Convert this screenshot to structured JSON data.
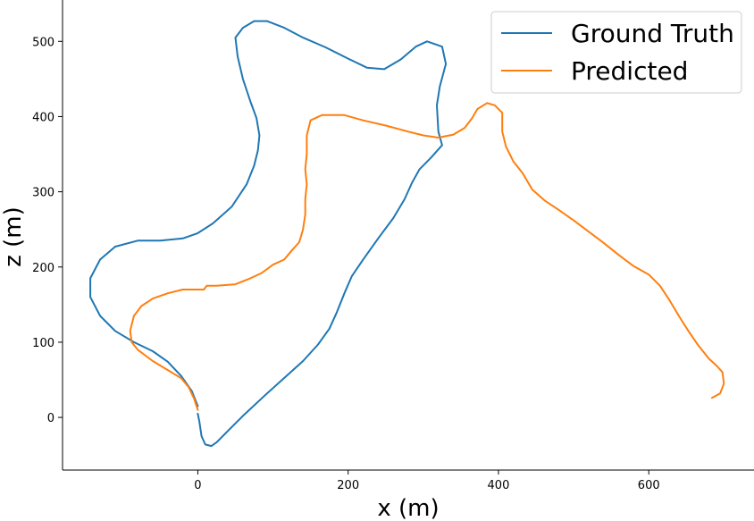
{
  "chart_data": {
    "type": "line",
    "title": "",
    "xlabel": "x (m)",
    "ylabel": "z (m)",
    "xlim": [
      -180,
      740
    ],
    "ylim": [
      -70,
      555
    ],
    "xticks": [
      0,
      200,
      400,
      600
    ],
    "yticks": [
      0,
      100,
      200,
      300,
      400,
      500
    ],
    "grid": false,
    "legend_position": "top-right",
    "series": [
      {
        "name": "Ground Truth",
        "color": "#1f77b4",
        "points": [
          [
            0,
            5
          ],
          [
            2,
            -5
          ],
          [
            5,
            -25
          ],
          [
            10,
            -36
          ],
          [
            18,
            -38
          ],
          [
            25,
            -33
          ],
          [
            40,
            -18
          ],
          [
            60,
            2
          ],
          [
            90,
            30
          ],
          [
            120,
            57
          ],
          [
            140,
            75
          ],
          [
            160,
            97
          ],
          [
            175,
            118
          ],
          [
            185,
            140
          ],
          [
            195,
            165
          ],
          [
            205,
            188
          ],
          [
            220,
            210
          ],
          [
            240,
            238
          ],
          [
            260,
            265
          ],
          [
            275,
            290
          ],
          [
            285,
            312
          ],
          [
            295,
            330
          ],
          [
            310,
            345
          ],
          [
            325,
            362
          ],
          [
            320,
            380
          ],
          [
            318,
            415
          ],
          [
            322,
            440
          ],
          [
            330,
            470
          ],
          [
            325,
            493
          ],
          [
            305,
            500
          ],
          [
            290,
            493
          ],
          [
            270,
            476
          ],
          [
            248,
            463
          ],
          [
            225,
            465
          ],
          [
            200,
            477
          ],
          [
            170,
            492
          ],
          [
            140,
            505
          ],
          [
            115,
            518
          ],
          [
            92,
            527
          ],
          [
            75,
            527
          ],
          [
            60,
            518
          ],
          [
            50,
            505
          ],
          [
            53,
            480
          ],
          [
            60,
            450
          ],
          [
            70,
            420
          ],
          [
            78,
            398
          ],
          [
            82,
            375
          ],
          [
            80,
            355
          ],
          [
            75,
            335
          ],
          [
            65,
            310
          ],
          [
            45,
            280
          ],
          [
            20,
            258
          ],
          [
            0,
            245
          ],
          [
            -20,
            238
          ],
          [
            -50,
            235
          ],
          [
            -80,
            235
          ],
          [
            -110,
            227
          ],
          [
            -130,
            210
          ],
          [
            -143,
            185
          ],
          [
            -143,
            160
          ],
          [
            -130,
            135
          ],
          [
            -110,
            115
          ],
          [
            -85,
            100
          ],
          [
            -60,
            88
          ],
          [
            -40,
            74
          ],
          [
            -22,
            55
          ],
          [
            -8,
            35
          ],
          [
            0,
            15
          ]
        ]
      },
      {
        "name": "Predicted",
        "color": "#ff7f0e",
        "points": [
          [
            0,
            10
          ],
          [
            -5,
            25
          ],
          [
            -12,
            40
          ],
          [
            -22,
            52
          ],
          [
            -40,
            63
          ],
          [
            -60,
            75
          ],
          [
            -80,
            90
          ],
          [
            -88,
            100
          ],
          [
            -90,
            115
          ],
          [
            -85,
            135
          ],
          [
            -75,
            148
          ],
          [
            -60,
            158
          ],
          [
            -40,
            165
          ],
          [
            -20,
            170
          ],
          [
            8,
            170
          ],
          [
            12,
            175
          ],
          [
            25,
            175
          ],
          [
            50,
            177
          ],
          [
            70,
            185
          ],
          [
            85,
            192
          ],
          [
            100,
            203
          ],
          [
            115,
            210
          ],
          [
            125,
            222
          ],
          [
            135,
            233
          ],
          [
            140,
            250
          ],
          [
            143,
            270
          ],
          [
            143,
            290
          ],
          [
            145,
            310
          ],
          [
            143,
            330
          ],
          [
            145,
            350
          ],
          [
            145,
            375
          ],
          [
            150,
            395
          ],
          [
            165,
            402
          ],
          [
            195,
            402
          ],
          [
            220,
            395
          ],
          [
            250,
            388
          ],
          [
            280,
            380
          ],
          [
            300,
            375
          ],
          [
            320,
            372
          ],
          [
            340,
            376
          ],
          [
            355,
            385
          ],
          [
            365,
            398
          ],
          [
            372,
            410
          ],
          [
            385,
            418
          ],
          [
            395,
            415
          ],
          [
            405,
            405
          ],
          [
            405,
            380
          ],
          [
            410,
            360
          ],
          [
            420,
            340
          ],
          [
            432,
            325
          ],
          [
            445,
            303
          ],
          [
            462,
            288
          ],
          [
            480,
            276
          ],
          [
            500,
            262
          ],
          [
            520,
            247
          ],
          [
            540,
            232
          ],
          [
            560,
            216
          ],
          [
            580,
            201
          ],
          [
            600,
            190
          ],
          [
            615,
            175
          ],
          [
            628,
            155
          ],
          [
            640,
            135
          ],
          [
            652,
            116
          ],
          [
            665,
            97
          ],
          [
            680,
            78
          ],
          [
            690,
            69
          ],
          [
            698,
            60
          ],
          [
            700,
            45
          ],
          [
            695,
            32
          ],
          [
            684,
            26
          ]
        ]
      }
    ]
  }
}
